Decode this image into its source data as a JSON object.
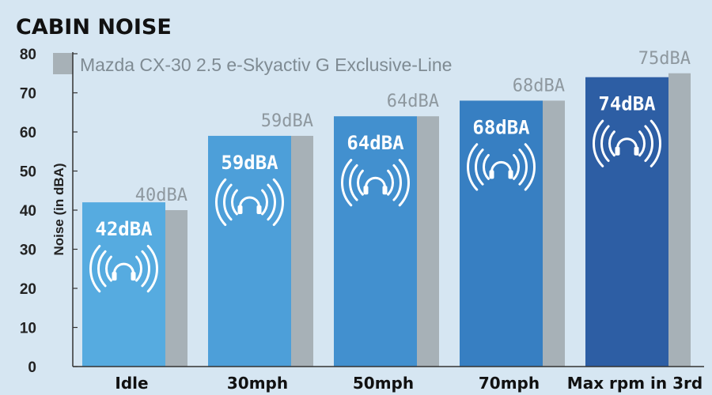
{
  "chart_data": {
    "type": "bar",
    "title": "CABIN NOISE",
    "ylabel": "Noise (in dBA)",
    "xlabel": "",
    "ylim": [
      0,
      80
    ],
    "yticks": [
      0,
      10,
      20,
      30,
      40,
      50,
      60,
      70,
      80
    ],
    "grid": false,
    "legend_position": "top-left",
    "categories": [
      "Idle",
      "30mph",
      "50mph",
      "70mph",
      "Max rpm in 3rd"
    ],
    "series": [
      {
        "values": [
          42,
          59,
          64,
          68,
          74
        ],
        "labels": [
          "42dBA",
          "59dBA",
          "64dBA",
          "68dBA",
          "74dBA"
        ],
        "colors": [
          "#56abe0",
          "#4d9fd9",
          "#4290cf",
          "#377fc2",
          "#2d5ea4"
        ],
        "icon": "headphones-sound-icon"
      },
      {
        "name": "Mazda CX-30 2.5 e-Skyactiv G Exclusive-Line",
        "values": [
          40,
          59,
          64,
          68,
          75
        ],
        "labels": [
          "40dBA",
          "59dBA",
          "64dBA",
          "68dBA",
          "75dBA"
        ],
        "color": "#a7b1b7"
      }
    ]
  }
}
